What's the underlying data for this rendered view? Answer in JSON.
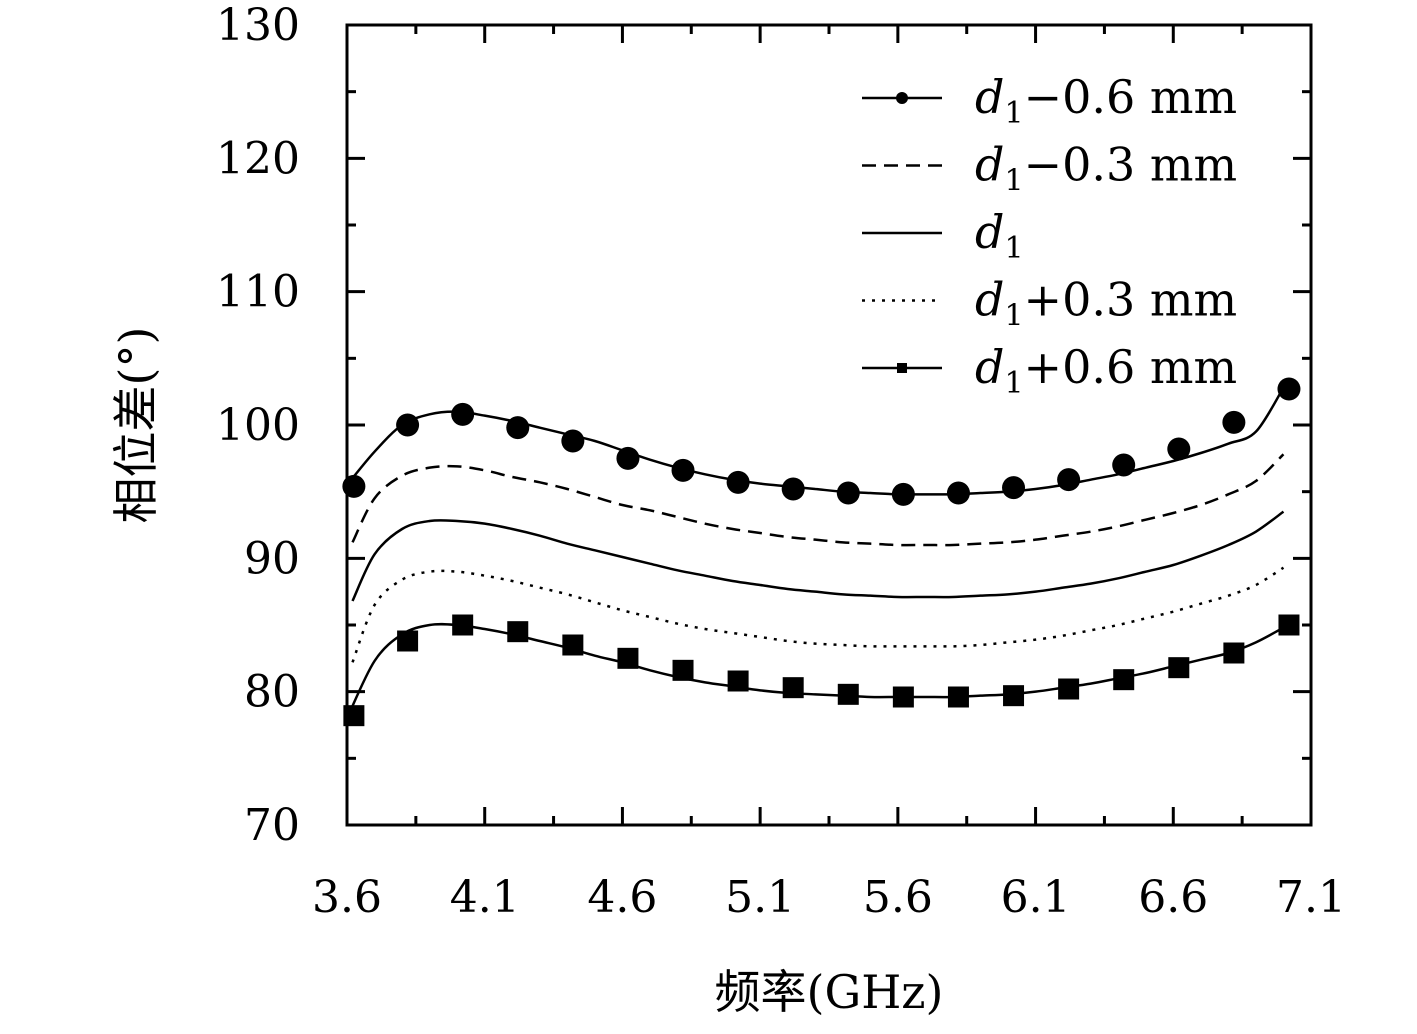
{
  "chart_data": {
    "type": "line",
    "title": "",
    "xlabel": "频率(GHz)",
    "ylabel": "相位差(°)",
    "xlim": [
      3.6,
      7.1
    ],
    "ylim": [
      70,
      130
    ],
    "xticks": [
      "3.6",
      "4.1",
      "4.6",
      "5.1",
      "5.6",
      "6.1",
      "6.6",
      "7.1"
    ],
    "yticks": [
      "70",
      "80",
      "90",
      "100",
      "110",
      "120",
      "130"
    ],
    "legend_position": "top-right",
    "series": [
      {
        "name": "d1−0.6 mm",
        "label_sub": "1",
        "label_rest": "−0.6 mm",
        "style": "solid",
        "marker": "circle",
        "x": [
          3.6,
          3.7,
          3.8,
          3.9,
          4.0,
          4.1,
          4.2,
          4.3,
          4.4,
          4.5,
          4.6,
          4.7,
          4.8,
          4.9,
          5.0,
          5.1,
          5.2,
          5.3,
          5.4,
          5.5,
          5.6,
          5.7,
          5.8,
          5.9,
          6.0,
          6.1,
          6.2,
          6.3,
          6.4,
          6.5,
          6.6,
          6.7,
          6.8,
          6.9,
          7.0
        ],
        "y": [
          95.5,
          98.0,
          100.0,
          100.8,
          101.0,
          100.7,
          100.3,
          99.8,
          99.3,
          98.8,
          98.1,
          97.4,
          96.8,
          96.3,
          95.9,
          95.6,
          95.4,
          95.2,
          95.0,
          94.9,
          94.8,
          94.8,
          94.8,
          94.9,
          95.0,
          95.2,
          95.5,
          95.9,
          96.3,
          96.8,
          97.3,
          97.9,
          98.6,
          99.5,
          102.8
        ],
        "marker_x": [
          3.625,
          3.82,
          4.02,
          4.22,
          4.42,
          4.62,
          4.82,
          5.02,
          5.22,
          5.42,
          5.62,
          5.82,
          6.02,
          6.22,
          6.42,
          6.62,
          6.82,
          7.02
        ],
        "marker_y": [
          95.4,
          100.0,
          100.8,
          99.8,
          98.8,
          97.5,
          96.6,
          95.7,
          95.2,
          94.9,
          94.8,
          94.9,
          95.3,
          95.9,
          97.0,
          98.2,
          100.2,
          102.7
        ]
      },
      {
        "name": "d1−0.3 mm",
        "label_sub": "1",
        "label_rest": "−0.3 mm",
        "style": "dashed",
        "marker": "none",
        "x": [
          3.62,
          3.7,
          3.8,
          3.9,
          4.0,
          4.1,
          4.2,
          4.3,
          4.4,
          4.5,
          4.6,
          4.7,
          4.8,
          4.9,
          5.0,
          5.1,
          5.2,
          5.3,
          5.4,
          5.5,
          5.6,
          5.7,
          5.8,
          5.9,
          6.0,
          6.1,
          6.2,
          6.3,
          6.4,
          6.5,
          6.6,
          6.7,
          6.8,
          6.9,
          7.0
        ],
        "y": [
          91.2,
          94.5,
          96.2,
          96.8,
          96.9,
          96.6,
          96.1,
          95.7,
          95.2,
          94.6,
          94.0,
          93.6,
          93.1,
          92.6,
          92.2,
          91.9,
          91.6,
          91.4,
          91.2,
          91.1,
          91.0,
          91.0,
          91.0,
          91.1,
          91.2,
          91.4,
          91.7,
          92.0,
          92.4,
          92.9,
          93.4,
          94.0,
          94.8,
          95.8,
          97.8
        ]
      },
      {
        "name": "d1",
        "label_sub": "1",
        "label_rest": "",
        "style": "solid",
        "marker": "none",
        "x": [
          3.62,
          3.7,
          3.8,
          3.9,
          4.0,
          4.1,
          4.2,
          4.3,
          4.4,
          4.5,
          4.6,
          4.7,
          4.8,
          4.9,
          5.0,
          5.1,
          5.2,
          5.3,
          5.4,
          5.5,
          5.6,
          5.7,
          5.8,
          5.9,
          6.0,
          6.1,
          6.2,
          6.3,
          6.4,
          6.5,
          6.6,
          6.7,
          6.8,
          6.9,
          7.0
        ],
        "y": [
          86.8,
          90.3,
          92.2,
          92.8,
          92.8,
          92.6,
          92.2,
          91.7,
          91.1,
          90.6,
          90.1,
          89.6,
          89.1,
          88.7,
          88.3,
          88.0,
          87.7,
          87.5,
          87.3,
          87.2,
          87.1,
          87.1,
          87.1,
          87.2,
          87.3,
          87.5,
          87.8,
          88.1,
          88.5,
          89.0,
          89.5,
          90.2,
          91.0,
          92.0,
          93.5
        ]
      },
      {
        "name": "d1+0.3 mm",
        "label_sub": "1",
        "label_rest": "+0.3 mm",
        "style": "dotted",
        "marker": "none",
        "x": [
          3.62,
          3.7,
          3.8,
          3.9,
          4.0,
          4.1,
          4.2,
          4.3,
          4.4,
          4.5,
          4.6,
          4.7,
          4.8,
          4.9,
          5.0,
          5.1,
          5.2,
          5.3,
          5.4,
          5.5,
          5.6,
          5.7,
          5.8,
          5.9,
          6.0,
          6.1,
          6.2,
          6.3,
          6.4,
          6.5,
          6.6,
          6.7,
          6.8,
          6.9,
          7.0
        ],
        "y": [
          82.2,
          86.5,
          88.4,
          89.0,
          89.0,
          88.7,
          88.3,
          87.8,
          87.3,
          86.7,
          86.1,
          85.6,
          85.1,
          84.7,
          84.4,
          84.1,
          83.8,
          83.6,
          83.5,
          83.4,
          83.4,
          83.4,
          83.4,
          83.5,
          83.7,
          83.9,
          84.2,
          84.6,
          85.0,
          85.5,
          86.0,
          86.6,
          87.2,
          88.0,
          89.3
        ]
      },
      {
        "name": "d1+0.6 mm",
        "label_sub": "1",
        "label_rest": "+0.6 mm",
        "style": "solid",
        "marker": "square",
        "x": [
          3.6,
          3.7,
          3.8,
          3.9,
          4.0,
          4.1,
          4.2,
          4.3,
          4.4,
          4.5,
          4.6,
          4.7,
          4.8,
          4.9,
          5.0,
          5.1,
          5.2,
          5.3,
          5.4,
          5.5,
          5.6,
          5.7,
          5.8,
          5.9,
          6.0,
          6.1,
          6.2,
          6.3,
          6.4,
          6.5,
          6.6,
          6.7,
          6.8,
          6.9,
          7.0
        ],
        "y": [
          78.0,
          82.3,
          84.3,
          85.0,
          85.0,
          84.7,
          84.3,
          83.8,
          83.3,
          82.7,
          82.2,
          81.6,
          81.1,
          80.7,
          80.4,
          80.1,
          79.9,
          79.8,
          79.7,
          79.6,
          79.6,
          79.6,
          79.6,
          79.7,
          79.8,
          80.0,
          80.3,
          80.6,
          81.0,
          81.4,
          81.9,
          82.4,
          82.9,
          83.7,
          84.8
        ],
        "marker_x": [
          3.625,
          3.82,
          4.02,
          4.22,
          4.42,
          4.62,
          4.82,
          5.02,
          5.22,
          5.42,
          5.62,
          5.82,
          6.02,
          6.22,
          6.42,
          6.62,
          6.82,
          7.02
        ],
        "marker_y": [
          78.2,
          83.8,
          85.0,
          84.5,
          83.5,
          82.5,
          81.6,
          80.8,
          80.3,
          79.8,
          79.6,
          79.6,
          79.7,
          80.2,
          80.9,
          81.8,
          82.9,
          85.0
        ]
      }
    ]
  }
}
